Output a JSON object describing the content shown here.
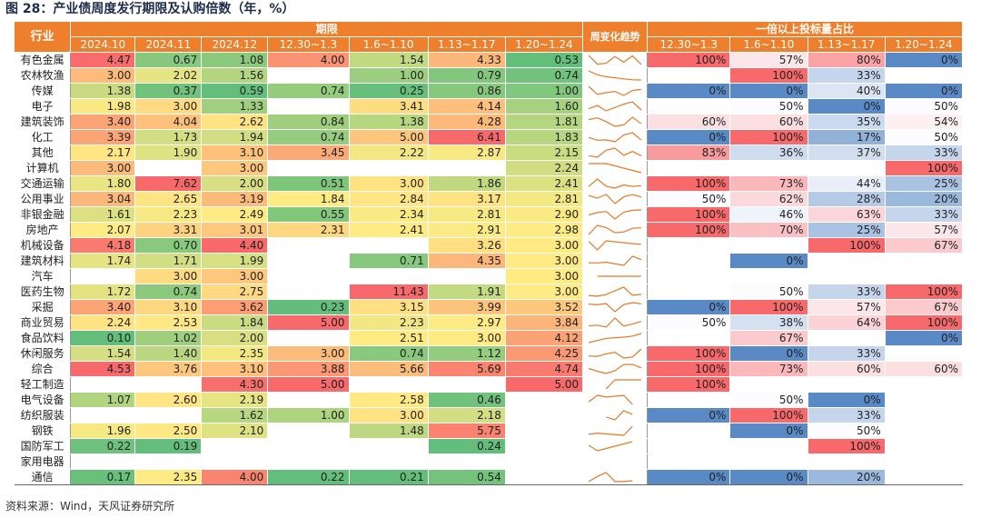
{
  "figure_title": "图 28：产业债周度发行期限及认购倍数（年，%）",
  "source": "资料来源：Wind，天风证券研究所",
  "header": {
    "industry_label": "行业",
    "term_group_label": "期限",
    "ratio_group_label": "一倍以上投标量占比",
    "trend_label": "周变化趋势",
    "term_columns": [
      "2024.10",
      "2024.11",
      "2024.12",
      "12.30~1.3",
      "1.6~1.10",
      "1.13~1.17",
      "1.20~1.24"
    ],
    "ratio_columns": [
      "12.30~1.3",
      "1.6~1.10",
      "1.13~1.17",
      "1.20~1.24"
    ]
  },
  "colors": {
    "header_bg": "#ee7f2c",
    "term_low": "#63be7b",
    "term_mid": "#ffeb84",
    "term_high": "#f8696b",
    "ratio_low": "#5a8ac6",
    "ratio_mid": "#fcfcff",
    "ratio_high": "#f8696b",
    "trend_line": "#e07a28"
  },
  "rows": [
    {
      "industry": "有色金属",
      "term": [
        "4.47",
        "0.67",
        "1.08",
        "4.00",
        "1.54",
        "4.33",
        "0.53"
      ],
      "ratio": [
        "100%",
        "57%",
        "80%",
        "0%"
      ]
    },
    {
      "industry": "农林牧渔",
      "term": [
        "3.00",
        "2.02",
        "1.56",
        "",
        "1.00",
        "0.79",
        "0.74"
      ],
      "ratio": [
        "",
        "100%",
        "33%",
        ""
      ]
    },
    {
      "industry": "传媒",
      "term": [
        "1.38",
        "0.37",
        "0.59",
        "0.74",
        "0.25",
        "0.86",
        "1.00"
      ],
      "ratio": [
        "0%",
        "0%",
        "40%",
        "0%"
      ]
    },
    {
      "industry": "电子",
      "term": [
        "1.98",
        "3.00",
        "1.33",
        "",
        "3.41",
        "4.14",
        "1.60"
      ],
      "ratio": [
        "",
        "50%",
        "0%",
        "50%"
      ]
    },
    {
      "industry": "建筑装饰",
      "term": [
        "3.40",
        "4.04",
        "2.62",
        "0.84",
        "1.38",
        "4.28",
        "1.81"
      ],
      "ratio": [
        "60%",
        "60%",
        "35%",
        "54%"
      ]
    },
    {
      "industry": "化工",
      "term": [
        "3.39",
        "1.73",
        "1.94",
        "0.74",
        "5.00",
        "6.41",
        "1.83"
      ],
      "ratio": [
        "0%",
        "100%",
        "17%",
        "50%"
      ]
    },
    {
      "industry": "其他",
      "term": [
        "2.17",
        "1.90",
        "3.10",
        "3.45",
        "2.22",
        "2.87",
        "2.15"
      ],
      "ratio": [
        "83%",
        "36%",
        "37%",
        "33%"
      ]
    },
    {
      "industry": "计算机",
      "term": [
        "3.00",
        "",
        "3.00",
        "",
        "",
        "",
        "2.24"
      ],
      "ratio": [
        "",
        "",
        "",
        "100%"
      ]
    },
    {
      "industry": "交通运输",
      "term": [
        "1.80",
        "7.62",
        "2.00",
        "0.51",
        "3.00",
        "1.86",
        "2.41"
      ],
      "ratio": [
        "100%",
        "73%",
        "44%",
        "25%"
      ]
    },
    {
      "industry": "公用事业",
      "term": [
        "3.04",
        "2.65",
        "3.19",
        "1.84",
        "2.84",
        "3.17",
        "2.81"
      ],
      "ratio": [
        "50%",
        "62%",
        "28%",
        "20%"
      ]
    },
    {
      "industry": "非银金融",
      "term": [
        "1.61",
        "2.23",
        "2.49",
        "0.55",
        "2.34",
        "2.81",
        "2.90"
      ],
      "ratio": [
        "100%",
        "46%",
        "63%",
        "33%"
      ]
    },
    {
      "industry": "房地产",
      "term": [
        "2.07",
        "3.31",
        "3.01",
        "2.31",
        "2.41",
        "2.91",
        "2.98"
      ],
      "ratio": [
        "100%",
        "70%",
        "25%",
        "57%"
      ]
    },
    {
      "industry": "机械设备",
      "term": [
        "4.18",
        "0.70",
        "4.40",
        "",
        "",
        "3.26",
        "3.00"
      ],
      "ratio": [
        "",
        "",
        "100%",
        "67%"
      ]
    },
    {
      "industry": "建筑材料",
      "term": [
        "1.74",
        "1.71",
        "1.99",
        "",
        "0.71",
        "4.35",
        "3.00"
      ],
      "ratio": [
        "",
        "0%",
        "",
        ""
      ]
    },
    {
      "industry": "汽车",
      "term": [
        "",
        "3.00",
        "3.00",
        "",
        "",
        "",
        "3.00"
      ],
      "ratio": [
        "",
        "",
        "",
        ""
      ]
    },
    {
      "industry": "医药生物",
      "term": [
        "1.72",
        "0.74",
        "2.75",
        "",
        "11.43",
        "1.91",
        "3.00"
      ],
      "ratio": [
        "",
        "50%",
        "33%",
        "100%"
      ]
    },
    {
      "industry": "采掘",
      "term": [
        "3.40",
        "3.10",
        "3.62",
        "0.23",
        "3.15",
        "3.99",
        "3.52"
      ],
      "ratio": [
        "0%",
        "100%",
        "57%",
        "67%"
      ]
    },
    {
      "industry": "商业贸易",
      "term": [
        "2.24",
        "2.53",
        "1.84",
        "5.00",
        "2.23",
        "2.97",
        "3.84"
      ],
      "ratio": [
        "50%",
        "38%",
        "64%",
        "100%"
      ]
    },
    {
      "industry": "食品饮料",
      "term": [
        "0.10",
        "1.02",
        "2.00",
        "",
        "2.51",
        "3.00",
        "4.12"
      ],
      "ratio": [
        "",
        "67%",
        "",
        "0%"
      ]
    },
    {
      "industry": "休闲服务",
      "term": [
        "1.54",
        "1.40",
        "2.35",
        "3.00",
        "0.74",
        "1.12",
        "4.25"
      ],
      "ratio": [
        "100%",
        "0%",
        "33%",
        ""
      ]
    },
    {
      "industry": "综合",
      "term": [
        "4.53",
        "3.76",
        "3.10",
        "3.88",
        "5.66",
        "5.69",
        "4.74"
      ],
      "ratio": [
        "100%",
        "73%",
        "60%",
        "60%"
      ]
    },
    {
      "industry": "轻工制造",
      "term": [
        "",
        "",
        "4.30",
        "5.00",
        "",
        "",
        "5.00"
      ],
      "ratio": [
        "100%",
        "",
        "",
        ""
      ]
    },
    {
      "industry": "电气设备",
      "term": [
        "1.07",
        "2.60",
        "2.19",
        "",
        "2.58",
        "0.46",
        ""
      ],
      "ratio": [
        "",
        "50%",
        "0%",
        ""
      ]
    },
    {
      "industry": "纺织服装",
      "term": [
        "",
        "",
        "1.62",
        "1.00",
        "3.00",
        "2.18",
        ""
      ],
      "ratio": [
        "0%",
        "100%",
        "33%",
        ""
      ]
    },
    {
      "industry": "钢铁",
      "term": [
        "1.96",
        "2.50",
        "2.10",
        "",
        "1.48",
        "5.75",
        ""
      ],
      "ratio": [
        "",
        "0%",
        "50%",
        ""
      ]
    },
    {
      "industry": "国防军工",
      "term": [
        "0.22",
        "0.19",
        "",
        "",
        "",
        "0.24",
        ""
      ],
      "ratio": [
        "",
        "",
        "100%",
        ""
      ]
    },
    {
      "industry": "家用电器",
      "term": [
        "",
        "",
        "",
        "",
        "",
        "",
        ""
      ],
      "ratio": [
        "",
        "",
        "",
        ""
      ]
    },
    {
      "industry": "通信",
      "term": [
        "0.17",
        "2.35",
        "4.00",
        "0.22",
        "0.21",
        "0.54",
        ""
      ],
      "ratio": [
        "0%",
        "0%",
        "20%",
        ""
      ]
    }
  ]
}
